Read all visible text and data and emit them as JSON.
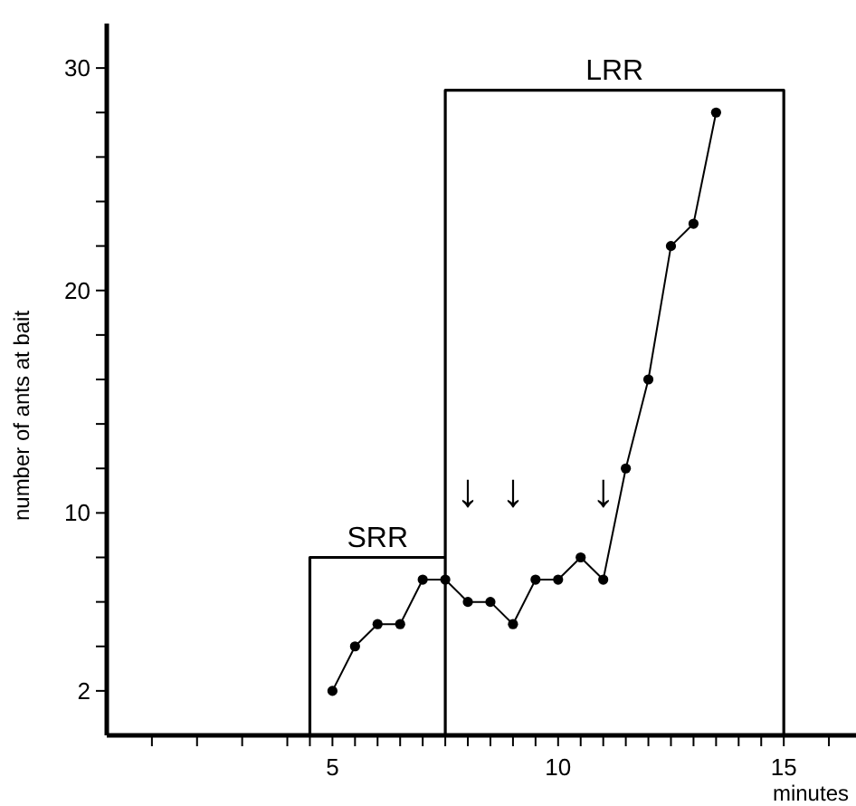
{
  "chart_data": {
    "type": "line",
    "xlabel": "minutes",
    "ylabel": "number of ants at bait",
    "xlim": [
      0,
      16.6
    ],
    "ylim": [
      0,
      32
    ],
    "xticks": [
      {
        "value": 1,
        "label": null
      },
      {
        "value": 2,
        "label": null
      },
      {
        "value": 3,
        "label": null
      },
      {
        "value": 4,
        "label": null
      },
      {
        "value": 4.5,
        "label": null
      },
      5,
      {
        "value": 5.5,
        "label": null
      },
      {
        "value": 6,
        "label": null
      },
      {
        "value": 6.5,
        "label": null
      },
      {
        "value": 7,
        "label": null
      },
      {
        "value": 7.5,
        "label": null
      },
      {
        "value": 8,
        "label": null
      },
      {
        "value": 8.5,
        "label": null
      },
      {
        "value": 9,
        "label": null
      },
      {
        "value": 9.5,
        "label": null
      },
      10,
      {
        "value": 10.5,
        "label": null
      },
      {
        "value": 11,
        "label": null
      },
      {
        "value": 11.5,
        "label": null
      },
      {
        "value": 12,
        "label": null
      },
      {
        "value": 12.5,
        "label": null
      },
      {
        "value": 13,
        "label": null
      },
      {
        "value": 13.5,
        "label": null
      },
      {
        "value": 14,
        "label": null
      },
      {
        "value": 14.5,
        "label": null
      },
      15,
      {
        "value": 16,
        "label": null
      }
    ],
    "yticks": [
      2,
      {
        "value": 4,
        "label": null
      },
      {
        "value": 6,
        "label": null
      },
      {
        "value": 8,
        "label": null
      },
      10,
      {
        "value": 12,
        "label": null
      },
      {
        "value": 14,
        "label": null
      },
      {
        "value": 16,
        "label": null
      },
      {
        "value": 18,
        "label": null
      },
      20,
      {
        "value": 22,
        "label": null
      },
      {
        "value": 24,
        "label": null
      },
      {
        "value": 26,
        "label": null
      },
      {
        "value": 28,
        "label": null
      },
      30
    ],
    "marker": "circle",
    "grid": false,
    "series": [
      {
        "color": "#000000",
        "x": [
          5,
          5.5,
          6,
          6.5,
          7,
          7.5,
          8,
          8.5,
          9,
          9.5,
          10,
          10.5,
          11,
          11.5,
          12,
          12.5,
          13,
          13.5
        ],
        "values": [
          2,
          4,
          5,
          5,
          7,
          7,
          6,
          6,
          5,
          7,
          7,
          8,
          7,
          12,
          16,
          22,
          23,
          28
        ]
      },
      {
        "color": "#000000",
        "marker": "none",
        "x": [
          4.5,
          4.5,
          7.5,
          7.5,
          7.5,
          15,
          15
        ],
        "values": [
          0,
          8,
          8,
          0,
          29,
          29,
          0
        ]
      }
    ],
    "annotations": [
      {
        "text": "SRR",
        "x": 6,
        "y": 8
      },
      {
        "text": "LRR",
        "x": 11.25,
        "y": 29
      },
      {
        "text": "↓",
        "x": 8,
        "y": 6
      },
      {
        "text": "↓",
        "x": 9,
        "y": 5
      },
      {
        "text": "↓",
        "x": 11,
        "y": 7
      }
    ]
  }
}
